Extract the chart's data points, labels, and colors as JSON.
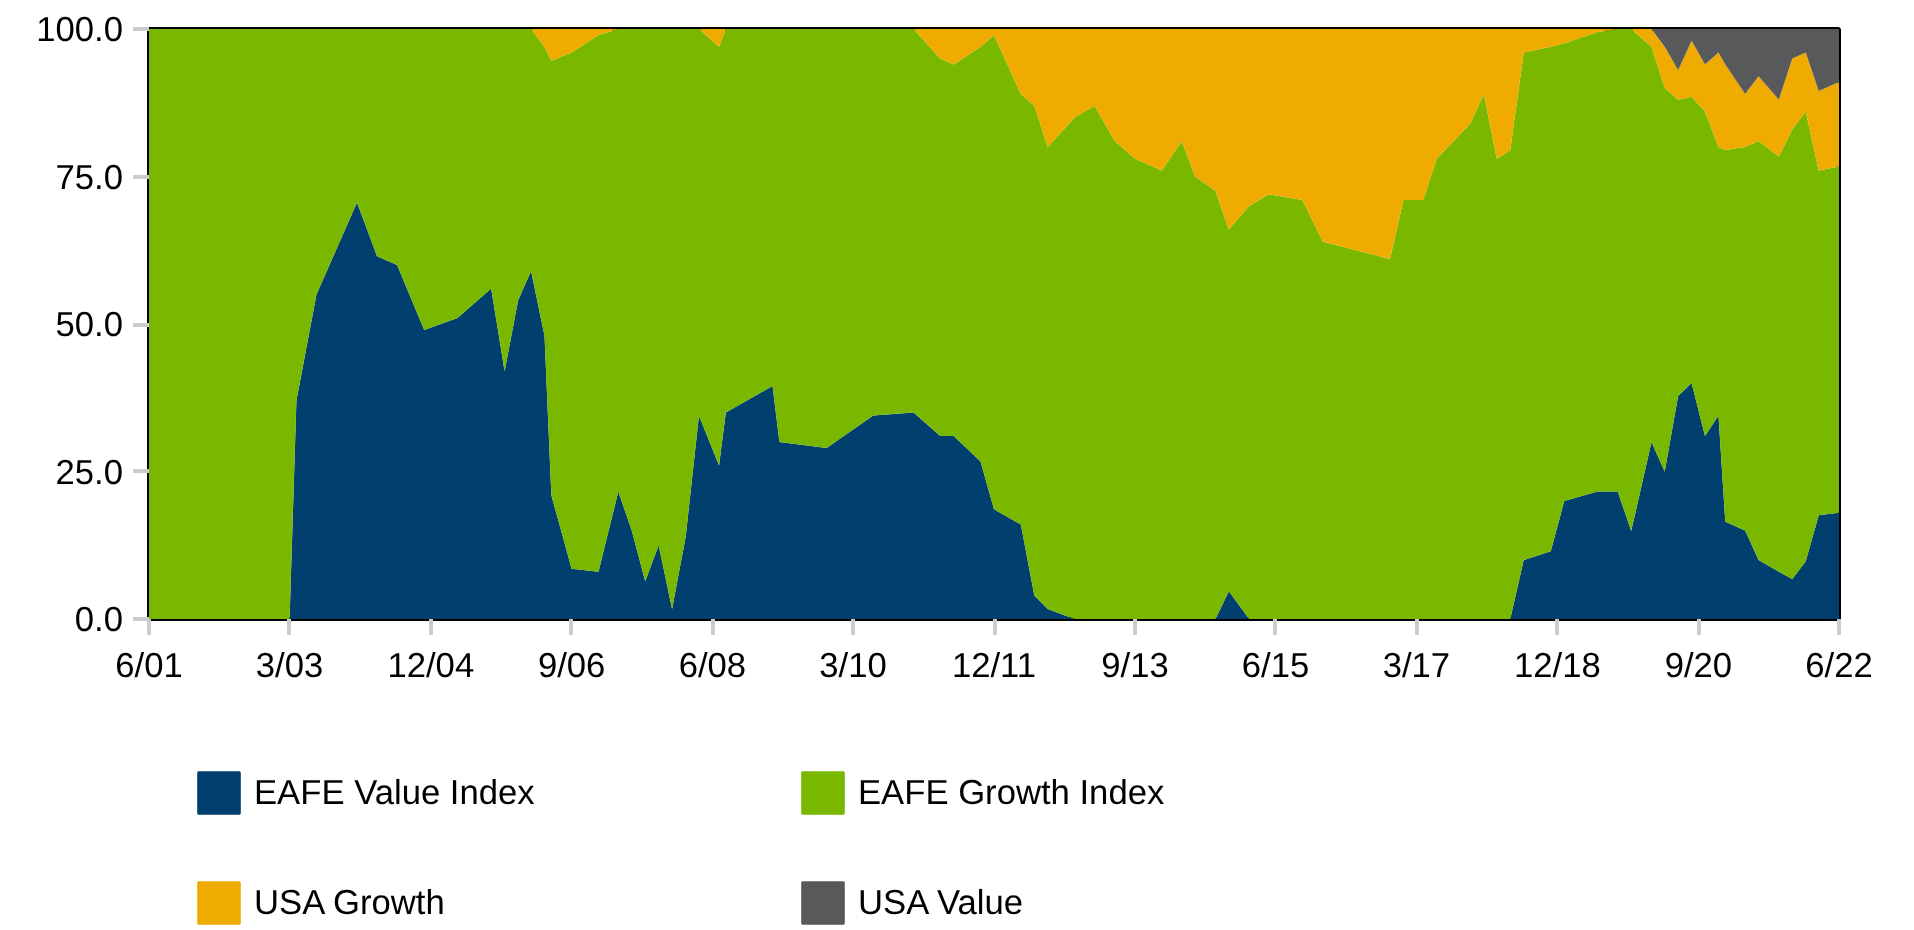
{
  "chart_data": {
    "type": "area",
    "stacked": true,
    "grid": false,
    "legend": "bottom",
    "x": [
      "2001-06",
      "2003-02",
      "2003-03",
      "2003-04",
      "2003-07",
      "2004-01",
      "2004-04",
      "2004-07",
      "2004-11",
      "2005-04",
      "2005-09",
      "2005-11",
      "2006-01",
      "2006-03",
      "2006-05",
      "2006-06",
      "2006-09",
      "2007-01",
      "2007-04",
      "2007-06",
      "2007-08",
      "2007-10",
      "2007-12",
      "2008-02",
      "2008-04",
      "2008-07",
      "2008-08",
      "2009-03",
      "2009-04",
      "2009-11",
      "2010-06",
      "2010-12",
      "2011-04",
      "2011-06",
      "2011-10",
      "2011-12",
      "2012-04",
      "2012-06",
      "2012-08",
      "2012-12",
      "2013-03",
      "2013-06",
      "2013-09",
      "2014-01",
      "2014-04",
      "2014-06",
      "2014-09",
      "2014-11",
      "2015-02",
      "2015-05",
      "2015-10",
      "2016-01",
      "2016-06",
      "2016-11",
      "2017-01",
      "2017-04",
      "2017-06",
      "2017-11",
      "2018-01",
      "2018-03",
      "2018-05",
      "2018-07",
      "2018-11",
      "2019-01",
      "2019-06",
      "2019-09",
      "2019-11",
      "2020-02",
      "2020-04",
      "2020-06",
      "2020-08",
      "2020-10",
      "2020-12",
      "2021-01",
      "2021-04",
      "2021-06",
      "2021-09",
      "2021-11",
      "2022-01",
      "2022-03",
      "2022-06"
    ],
    "series": [
      {
        "name": "EAFE Value Index",
        "color": "#003f6e",
        "values": [
          0,
          0,
          0,
          37,
          55,
          70.6,
          61.5,
          60,
          49,
          51,
          56,
          42,
          54,
          59,
          48,
          21,
          8.5,
          8,
          21.6,
          15,
          6.4,
          12.5,
          1.7,
          14,
          34.5,
          26,
          35,
          39.5,
          30,
          29,
          34.5,
          35,
          31,
          31,
          26.7,
          18.6,
          16,
          4,
          1.7,
          0,
          0,
          0,
          0,
          0,
          0,
          0,
          0,
          4.7,
          0,
          0,
          0,
          0,
          0,
          0,
          0,
          0,
          0,
          0,
          0,
          0,
          0,
          10,
          11.5,
          20,
          21.6,
          21.6,
          14.9,
          30,
          25,
          37.8,
          40,
          31,
          34.5,
          16.5,
          15,
          10,
          8,
          6.8,
          9.8,
          17.6,
          18
        ]
      },
      {
        "name": "EAFE Growth Index",
        "color": "#7ab800",
        "values": [
          100,
          100,
          100,
          63,
          45,
          29.4,
          38.5,
          40,
          51,
          49,
          44,
          58,
          46,
          41,
          49,
          73.6,
          87.5,
          91,
          78.4,
          85,
          93.6,
          87.5,
          98.3,
          86,
          65.5,
          71,
          65,
          60.5,
          70,
          71,
          65.5,
          65,
          64,
          63,
          70.3,
          80.4,
          73,
          83,
          78.3,
          85,
          87,
          81,
          78,
          76,
          81,
          75,
          72.6,
          61.3,
          70,
          72,
          71,
          64,
          62.5,
          61,
          71,
          71,
          78,
          84,
          89,
          78,
          79.5,
          86,
          85.5,
          77.6,
          77.9,
          78.4,
          85.1,
          67,
          65,
          50.2,
          48.5,
          55,
          45.5,
          63,
          65,
          71,
          70.4,
          76.2,
          76.2,
          58.4,
          58.7
        ]
      },
      {
        "name": "USA Growth",
        "color": "#f0ab00",
        "values": [
          0,
          0,
          0,
          0,
          0,
          0,
          0,
          0,
          0,
          0,
          0,
          0,
          0,
          0,
          3,
          5.4,
          4,
          1,
          0,
          0,
          0,
          0,
          0,
          0,
          0,
          3,
          0,
          0,
          0,
          0,
          0,
          0,
          5,
          6,
          3,
          1,
          11,
          13,
          20,
          15,
          13,
          19,
          22,
          24,
          19,
          25,
          27.4,
          34,
          30,
          28,
          29,
          36,
          37.5,
          39,
          29,
          29,
          22,
          16,
          11,
          22,
          20.5,
          4,
          3,
          2.4,
          0.5,
          0,
          0,
          3,
          7,
          5,
          9.5,
          8,
          16,
          14.5,
          9,
          11,
          9.6,
          12,
          10,
          13.5,
          14.3
        ]
      },
      {
        "name": "USA Value",
        "color": "#58595b",
        "values": [
          0,
          0,
          0,
          0,
          0,
          0,
          0,
          0,
          0,
          0,
          0,
          0,
          0,
          0,
          0,
          0,
          0,
          0,
          0,
          0,
          0,
          0,
          0,
          0,
          0,
          0,
          0,
          0,
          0,
          0,
          0,
          0,
          0,
          0,
          0,
          0,
          0,
          0,
          0,
          0,
          0,
          0,
          0,
          0,
          0,
          0,
          0,
          0,
          0,
          0,
          0,
          0,
          0,
          0,
          0,
          0,
          0,
          0,
          0,
          0,
          0,
          0,
          0,
          0,
          0,
          0,
          0,
          0,
          3,
          7,
          2,
          6,
          4,
          6,
          11,
          8,
          12,
          5,
          4,
          10.5,
          9
        ]
      }
    ],
    "xlim": [
      "2001-06",
      "2022-06"
    ],
    "xticks": [
      {
        "value": "2001-06",
        "label": "6/01"
      },
      {
        "value": "2003-03",
        "label": "3/03"
      },
      {
        "value": "2004-12",
        "label": "12/04"
      },
      {
        "value": "2006-09",
        "label": "9/06"
      },
      {
        "value": "2008-06",
        "label": "6/08"
      },
      {
        "value": "2010-03",
        "label": "3/10"
      },
      {
        "value": "2011-12",
        "label": "12/11"
      },
      {
        "value": "2013-09",
        "label": "9/13"
      },
      {
        "value": "2015-06",
        "label": "6/15"
      },
      {
        "value": "2017-03",
        "label": "3/17"
      },
      {
        "value": "2018-12",
        "label": "12/18"
      },
      {
        "value": "2020-09",
        "label": "9/20"
      },
      {
        "value": "2022-06",
        "label": "6/22"
      }
    ],
    "ylim": [
      0,
      100
    ],
    "yticks": [
      {
        "value": 0,
        "label": "0.0"
      },
      {
        "value": 25,
        "label": "25.0"
      },
      {
        "value": 50,
        "label": "50.0"
      },
      {
        "value": 75,
        "label": "75.0"
      },
      {
        "value": 100,
        "label": "100.0"
      }
    ]
  }
}
